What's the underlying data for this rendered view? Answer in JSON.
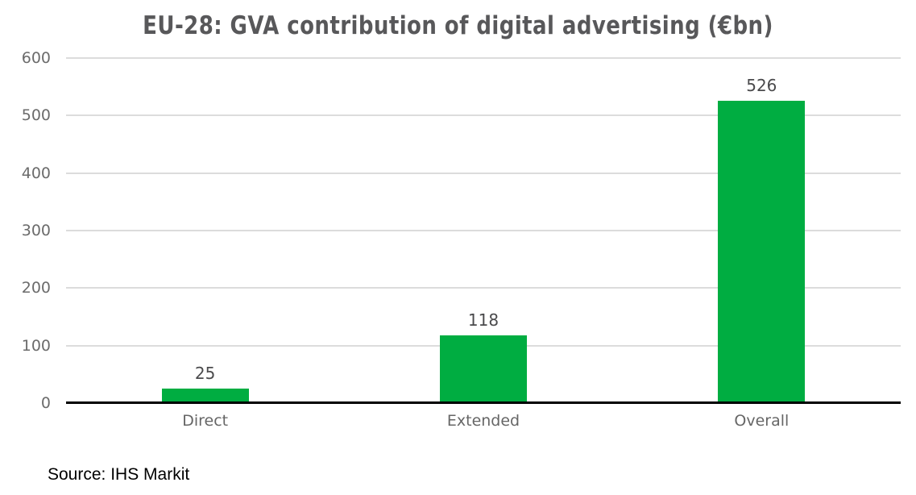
{
  "chart": {
    "title": "EU-28: GVA contribution of digital advertising (€bn)",
    "source": "Source: IHS Markit"
  },
  "chart_data": {
    "type": "bar",
    "title": "EU-28: GVA contribution of digital advertising (€bn)",
    "categories": [
      "Direct",
      "Extended",
      "Overall"
    ],
    "values": [
      25,
      118,
      526
    ],
    "xlabel": "",
    "ylabel": "",
    "ylim": [
      0,
      600
    ],
    "yticks": [
      0,
      100,
      200,
      300,
      400,
      500,
      600
    ],
    "grid": true,
    "legend": false,
    "bar_color": "#00AD41",
    "gridline_color": "#DCDCDC",
    "axis_line_color": "#000000",
    "title_color": "#58585A",
    "tick_label_color": "#6B6B6B",
    "value_label_color": "#4A4A4C",
    "source": "Source: IHS Markit"
  }
}
